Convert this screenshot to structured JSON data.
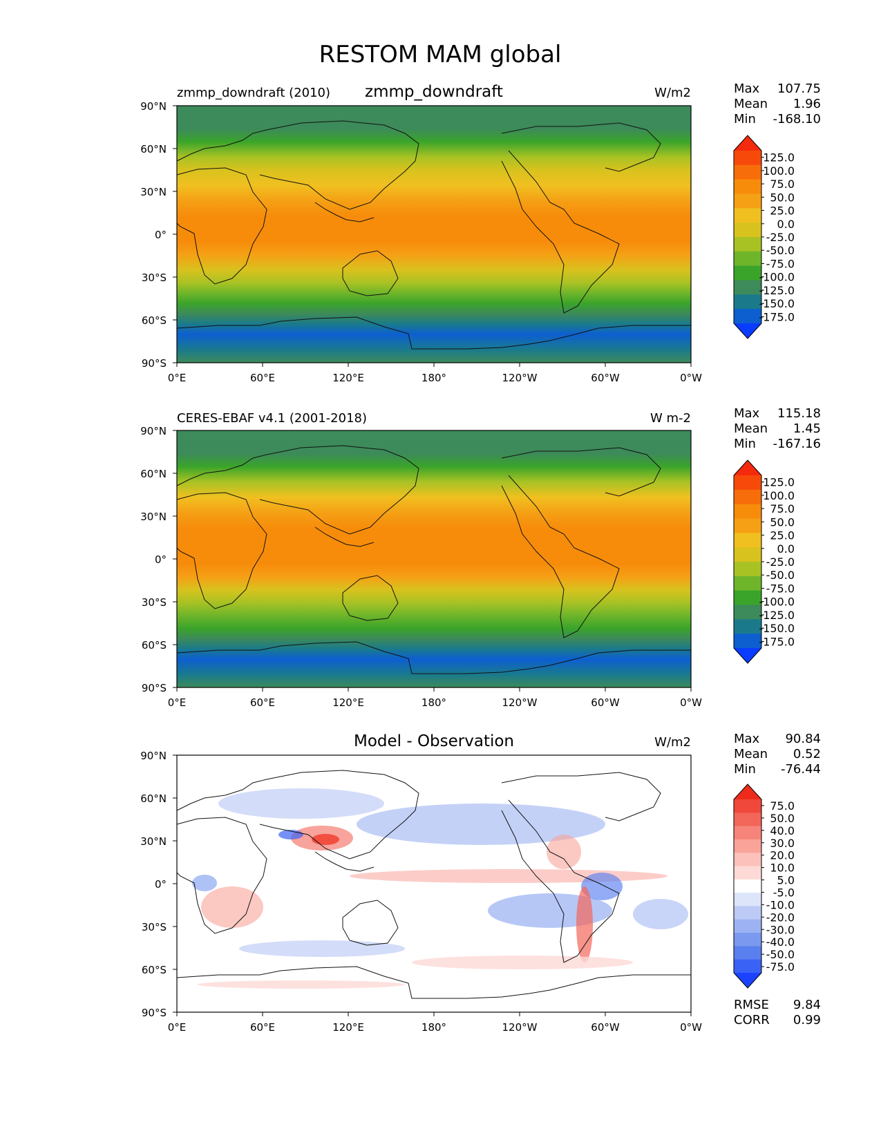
{
  "figure": {
    "title": "RESTOM MAM global"
  },
  "axes": {
    "lat_labels": [
      "90°N",
      "60°N",
      "30°N",
      "0°",
      "30°S",
      "60°S",
      "90°S"
    ],
    "lon_labels": [
      "0°E",
      "60°E",
      "120°E",
      "180°",
      "120°W",
      "60°W",
      "0°W"
    ]
  },
  "colors": {
    "levels": [
      "#0a3cff",
      "#0d5fd0",
      "#1a7a8c",
      "#3d8a5a",
      "#3aa42a",
      "#6eb52a",
      "#a8c224",
      "#d8c21e",
      "#f0c020",
      "#f5a015",
      "#f78c0b",
      "#f76d0a",
      "#f74a0a",
      "#f52a0d"
    ],
    "diff_levels": [
      "#1b43ff",
      "#3a62f5",
      "#5a80ef",
      "#7a99ef",
      "#9cb2f2",
      "#bccaf5",
      "#dde5fa",
      "#ffffff",
      "#fddad6",
      "#fbc1ba",
      "#f9a399",
      "#f6847a",
      "#f3665a",
      "#f0483a",
      "#ee2b1a"
    ]
  },
  "panels": [
    {
      "id": "model",
      "left_title": "zmmp_downdraft (2010)",
      "center_title": "zmmp_downdraft",
      "units": "W/m2",
      "stats": {
        "max_label": "Max",
        "max": "107.75",
        "mean_label": "Mean",
        "mean": "1.96",
        "min_label": "Min",
        "min": "-168.10"
      },
      "colorbar_ticks": [
        "125.0",
        "100.0",
        "75.0",
        "50.0",
        "25.0",
        "0.0",
        "-25.0",
        "-50.0",
        "-75.0",
        "-100.0",
        "-125.0",
        "-150.0",
        "-175.0"
      ]
    },
    {
      "id": "obs",
      "left_title": "CERES-EBAF v4.1 (2001-2018)",
      "center_title": "",
      "units": "W m-2",
      "stats": {
        "max_label": "Max",
        "max": "115.18",
        "mean_label": "Mean",
        "mean": "1.45",
        "min_label": "Min",
        "min": "-167.16"
      },
      "colorbar_ticks": [
        "125.0",
        "100.0",
        "75.0",
        "50.0",
        "25.0",
        "0.0",
        "-25.0",
        "-50.0",
        "-75.0",
        "-100.0",
        "-125.0",
        "-150.0",
        "-175.0"
      ]
    },
    {
      "id": "diff",
      "left_title": "",
      "center_title": "Model - Observation",
      "units": "W/m2",
      "stats": {
        "max_label": "Max",
        "max": "90.84",
        "mean_label": "Mean",
        "mean": "0.52",
        "min_label": "Min",
        "min": "-76.44"
      },
      "colorbar_ticks": [
        "75.0",
        "50.0",
        "40.0",
        "30.0",
        "20.0",
        "10.0",
        "5.0",
        "-5.0",
        "-10.0",
        "-20.0",
        "-30.0",
        "-40.0",
        "-50.0",
        "-75.0"
      ],
      "rmse_label": "RMSE",
      "rmse": "9.84",
      "corr_label": "CORR",
      "corr": "0.99"
    }
  ],
  "chart_data": {
    "type": "heatmap",
    "title": "RESTOM MAM global",
    "xlabels": [
      "0°E",
      "60°E",
      "120°E",
      "180°",
      "120°W",
      "60°W",
      "0°W"
    ],
    "ylabels": [
      "90°N",
      "60°N",
      "30°N",
      "0°",
      "30°S",
      "60°S",
      "90°S"
    ],
    "xlim": [
      0,
      360
    ],
    "ylim": [
      -90,
      90
    ],
    "panels": [
      {
        "name": "zmmp_downdraft",
        "lat_profile": [
          [
            90,
            -120
          ],
          [
            75,
            -85
          ],
          [
            60,
            -55
          ],
          [
            45,
            -10
          ],
          [
            30,
            25
          ],
          [
            15,
            70
          ],
          [
            0,
            85
          ],
          [
            -15,
            75
          ],
          [
            -30,
            30
          ],
          [
            -45,
            -60
          ],
          [
            -55,
            -120
          ],
          [
            -65,
            -155
          ],
          [
            -75,
            -160
          ],
          [
            -90,
            -120
          ]
        ],
        "stats": {
          "max": 107.75,
          "mean": 1.96,
          "min": -168.1
        },
        "colorbar_levels": [
          125.0,
          100.0,
          75.0,
          50.0,
          25.0,
          0.0,
          -25.0,
          -50.0,
          -75.0,
          -100.0,
          -125.0,
          -150.0,
          -175.0
        ]
      },
      {
        "name": "CERES-EBAF v4.1 (2001-2018)",
        "lat_profile": [
          [
            90,
            -120
          ],
          [
            75,
            -85
          ],
          [
            60,
            -55
          ],
          [
            45,
            -5
          ],
          [
            30,
            35
          ],
          [
            15,
            80
          ],
          [
            0,
            90
          ],
          [
            -15,
            70
          ],
          [
            -30,
            25
          ],
          [
            -45,
            -65
          ],
          [
            -55,
            -125
          ],
          [
            -65,
            -158
          ],
          [
            -75,
            -160
          ],
          [
            -90,
            -120
          ]
        ],
        "stats": {
          "max": 115.18,
          "mean": 1.45,
          "min": -167.16
        },
        "colorbar_levels": [
          125.0,
          100.0,
          75.0,
          50.0,
          25.0,
          0.0,
          -25.0,
          -50.0,
          -75.0,
          -100.0,
          -125.0,
          -150.0,
          -175.0
        ]
      },
      {
        "name": "Model - Observation",
        "stats": {
          "max": 90.84,
          "mean": 0.52,
          "min": -76.44,
          "rmse": 9.84,
          "corr": 0.99
        },
        "colorbar_levels": [
          75.0,
          50.0,
          40.0,
          30.0,
          20.0,
          10.0,
          5.0,
          -5.0,
          -10.0,
          -20.0,
          -30.0,
          -40.0,
          -50.0,
          -75.0
        ]
      }
    ]
  }
}
